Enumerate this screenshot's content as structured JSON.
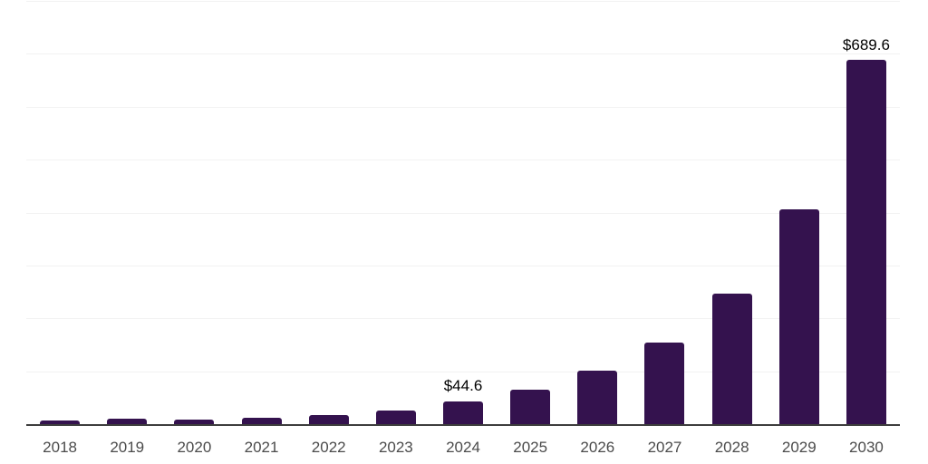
{
  "chart_data": {
    "type": "bar",
    "title": "",
    "xlabel": "",
    "ylabel": "",
    "categories": [
      "2018",
      "2019",
      "2020",
      "2021",
      "2022",
      "2023",
      "2024",
      "2025",
      "2026",
      "2027",
      "2028",
      "2029",
      "2030"
    ],
    "values": [
      8.5,
      12.2,
      9.9,
      13.3,
      19.1,
      27.6,
      44.6,
      66.4,
      102.8,
      155.9,
      247.9,
      407.1,
      689.6
    ],
    "bar_labels": [
      "",
      "",
      "",
      "",
      "",
      "",
      "$44.6",
      "",
      "",
      "",
      "",
      "",
      "$689.6"
    ],
    "ylim": [
      0,
      800
    ],
    "gridline_step": 100,
    "grid": true,
    "legend_position": "none",
    "currency_prefix": "$"
  },
  "colors": {
    "background": "#ffffff",
    "bar": "#34124e",
    "gridline": "#f2f2f2",
    "axis_line": "#3d3d3d",
    "tick_label": "#4b4b4b",
    "value_label": "#000000"
  }
}
